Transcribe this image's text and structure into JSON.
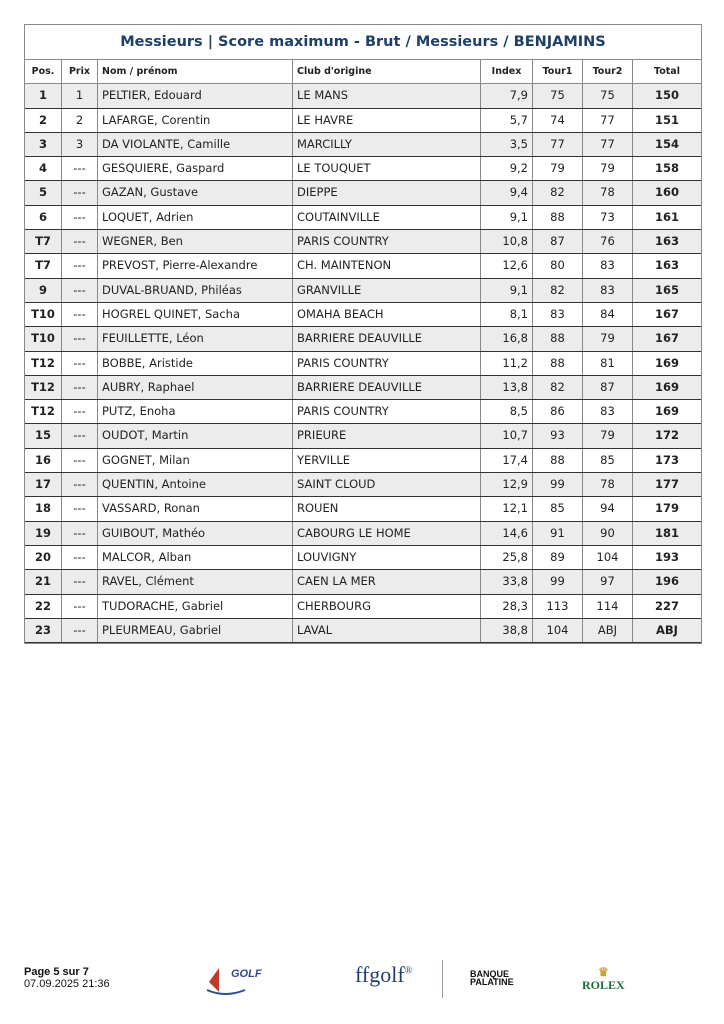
{
  "title": "Messieurs | Score maximum - Brut / Messieurs / BENJAMINS",
  "columns": [
    "Pos.",
    "Prix",
    "Nom / prénom",
    "Club d'origine",
    "Index",
    "Tour1",
    "Tour2",
    "Total"
  ],
  "rows": [
    [
      "1",
      "1",
      "PELTIER, Edouard",
      "LE MANS",
      "7,9",
      "75",
      "75",
      "150"
    ],
    [
      "2",
      "2",
      "LAFARGE, Corentin",
      "LE HAVRE",
      "5,7",
      "74",
      "77",
      "151"
    ],
    [
      "3",
      "3",
      "DA VIOLANTE, Camille",
      "MARCILLY",
      "3,5",
      "77",
      "77",
      "154"
    ],
    [
      "4",
      "---",
      "GESQUIERE, Gaspard",
      "LE TOUQUET",
      "9,2",
      "79",
      "79",
      "158"
    ],
    [
      "5",
      "---",
      "GAZAN, Gustave",
      "DIEPPE",
      "9,4",
      "82",
      "78",
      "160"
    ],
    [
      "6",
      "---",
      "LOQUET, Adrien",
      "COUTAINVILLE",
      "9,1",
      "88",
      "73",
      "161"
    ],
    [
      "T7",
      "---",
      "WEGNER, Ben",
      "PARIS COUNTRY",
      "10,8",
      "87",
      "76",
      "163"
    ],
    [
      "T7",
      "---",
      "PREVOST, Pierre-Alexandre",
      "CH. MAINTENON",
      "12,6",
      "80",
      "83",
      "163"
    ],
    [
      "9",
      "---",
      "DUVAL-BRUAND, Philéas",
      "GRANVILLE",
      "9,1",
      "82",
      "83",
      "165"
    ],
    [
      "T10",
      "---",
      "HOGREL QUINET, Sacha",
      "OMAHA BEACH",
      "8,1",
      "83",
      "84",
      "167"
    ],
    [
      "T10",
      "---",
      "FEUILLETTE, Léon",
      "BARRIERE DEAUVILLE",
      "16,8",
      "88",
      "79",
      "167"
    ],
    [
      "T12",
      "---",
      "BOBBE, Aristide",
      "PARIS COUNTRY",
      "11,2",
      "88",
      "81",
      "169"
    ],
    [
      "T12",
      "---",
      "AUBRY, Raphael",
      "BARRIERE DEAUVILLE",
      "13,8",
      "82",
      "87",
      "169"
    ],
    [
      "T12",
      "---",
      "PUTZ, Enoha",
      "PARIS COUNTRY",
      "8,5",
      "86",
      "83",
      "169"
    ],
    [
      "15",
      "---",
      "OUDOT, Martin",
      "PRIEURE",
      "10,7",
      "93",
      "79",
      "172"
    ],
    [
      "16",
      "---",
      "GOGNET, Milan",
      "YERVILLE",
      "17,4",
      "88",
      "85",
      "173"
    ],
    [
      "17",
      "---",
      "QUENTIN, Antoine",
      "SAINT CLOUD",
      "12,9",
      "99",
      "78",
      "177"
    ],
    [
      "18",
      "---",
      "VASSARD, Ronan",
      "ROUEN",
      "12,1",
      "85",
      "94",
      "179"
    ],
    [
      "19",
      "---",
      "GUIBOUT, Mathéo",
      "CABOURG LE HOME",
      "14,6",
      "91",
      "90",
      "181"
    ],
    [
      "20",
      "---",
      "MALCOR, Alban",
      "LOUVIGNY",
      "25,8",
      "89",
      "104",
      "193"
    ],
    [
      "21",
      "---",
      "RAVEL, Clément",
      "CAEN LA MER",
      "33,8",
      "99",
      "97",
      "196"
    ],
    [
      "22",
      "---",
      "TUDORACHE, Gabriel",
      "CHERBOURG",
      "28,3",
      "113",
      "114",
      "227"
    ],
    [
      "23",
      "---",
      "PLEURMEAU, Gabriel",
      "LAVAL",
      "38,8",
      "104",
      "ABJ",
      "ABJ"
    ]
  ],
  "footer": {
    "page": "Page 5 sur 7",
    "datetime": "07.09.2025 21:36"
  },
  "logos": {
    "golf_normandie": "GOLF",
    "ffgolf": "ffgolf",
    "palatine": "BANQUE PALATINE",
    "rolex": "ROLEX"
  },
  "colors": {
    "title": "#1f3f6b",
    "row_alt": "#ececec",
    "rolex": "#1e6b3a"
  }
}
